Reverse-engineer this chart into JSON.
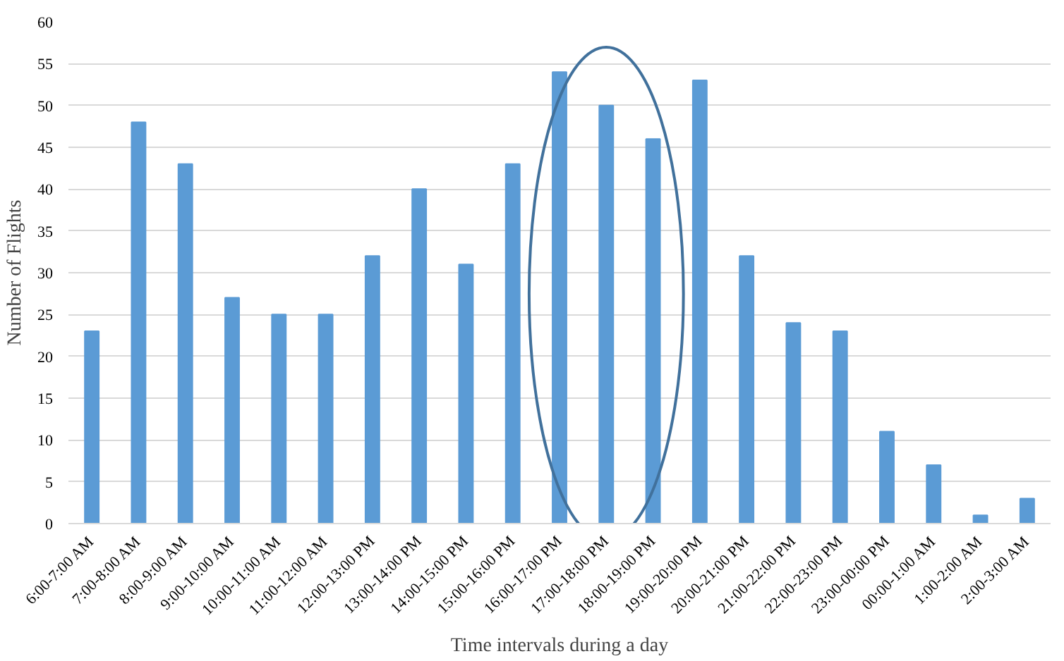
{
  "chart_data": {
    "type": "bar",
    "xlabel": "Time intervals during a day",
    "ylabel": "Number of Flights",
    "categories": [
      "6:00-7:00 AM",
      "7:00-8:00 AM",
      "8:00-9:00 AM",
      "9:00-10:00 AM",
      "10:00-11:00 AM",
      "11:00-12:00 AM",
      "12:00-13:00 PM",
      "13:00-14:00 PM",
      "14:00-15:00 PM",
      "15:00-16:00 PM",
      "16:00-17:00 PM",
      "17:00-18:00 PM",
      "18:00-19:00 PM",
      "19:00-20:00 PM",
      "20:00-21:00 PM",
      "21:00-22:00 PM",
      "22:00-23:00 PM",
      "23:00-00:00 PM",
      "00:00-1:00 AM",
      "1:00-2:00 AM",
      "2:00-3:00 AM"
    ],
    "values": [
      23,
      48,
      43,
      27,
      25,
      25,
      32,
      40,
      31,
      43,
      54,
      50,
      46,
      53,
      32,
      24,
      23,
      11,
      7,
      1,
      3
    ],
    "color": "#5b9bd5",
    "ylim": [
      0,
      60
    ],
    "yticks": [
      0,
      5,
      10,
      15,
      20,
      25,
      30,
      35,
      40,
      45,
      50,
      55,
      60
    ],
    "grid": "y"
  }
}
